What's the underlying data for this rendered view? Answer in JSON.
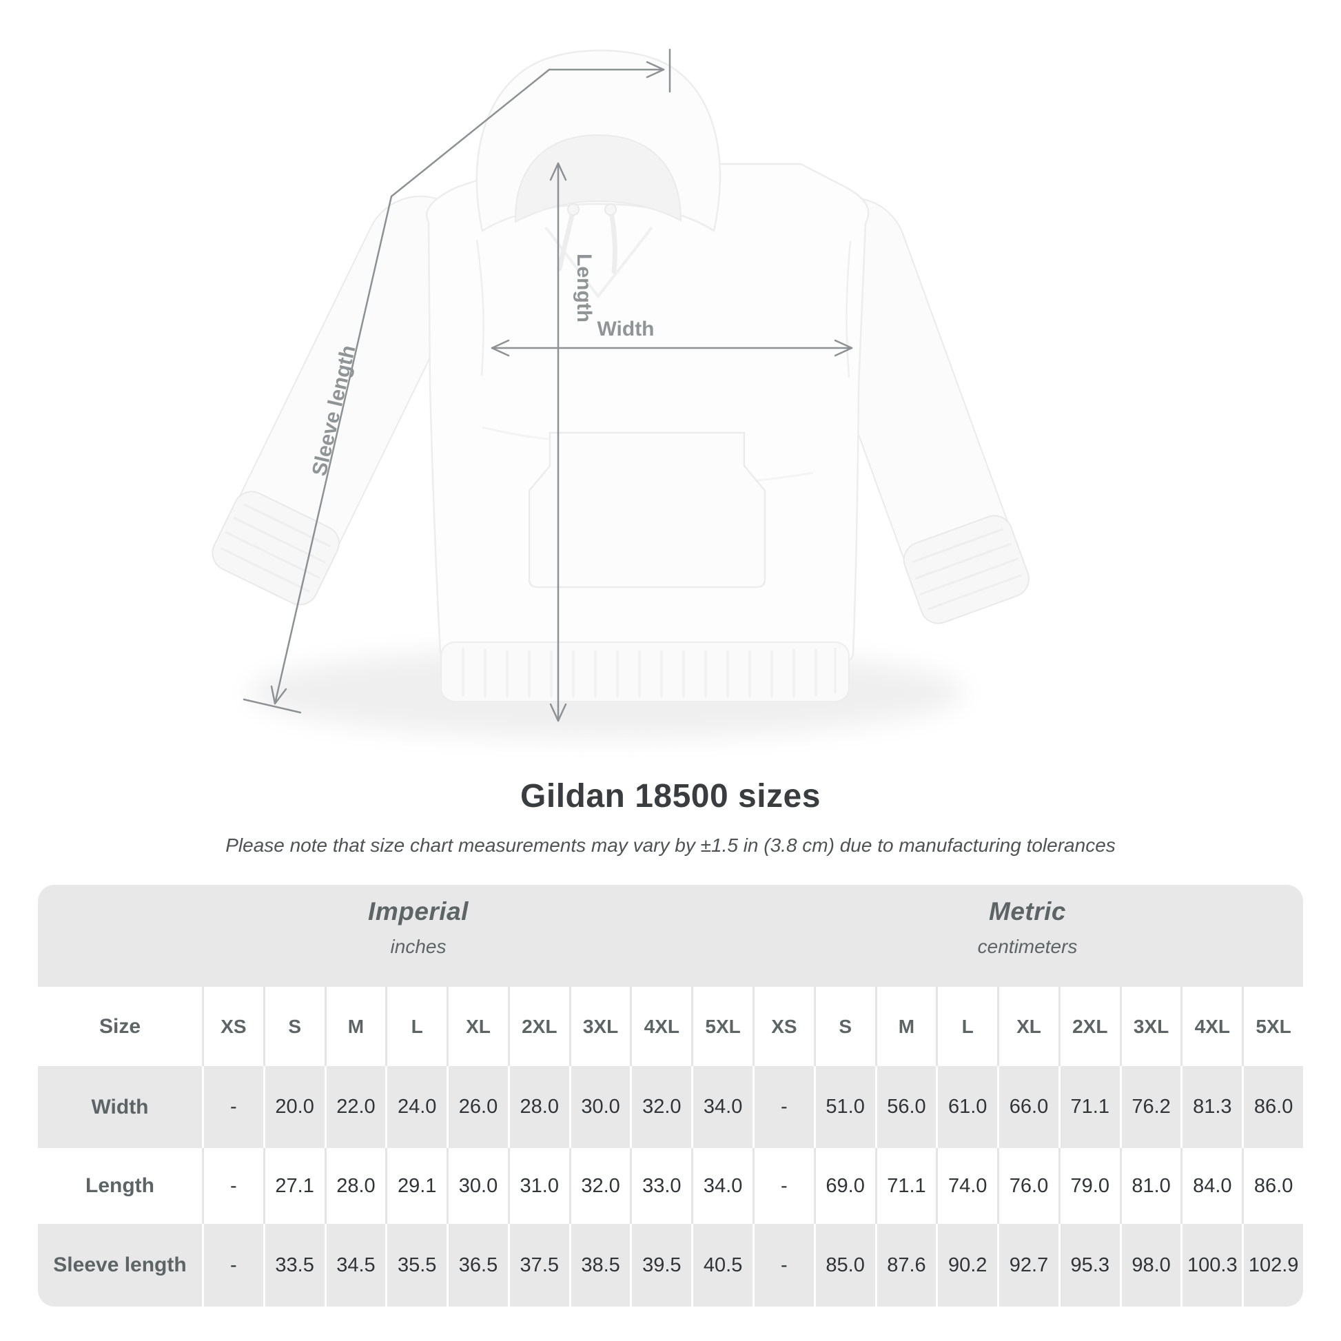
{
  "title": "Gildan 18500 sizes",
  "subtitle": "Please note that size chart measurements may vary by ±1.5 in (3.8 cm) due to manufacturing tolerances",
  "figure": {
    "length_label": "Length",
    "width_label": "Width",
    "sleeve_label": "Sleeve length"
  },
  "table": {
    "size_header": "Size",
    "groups": [
      {
        "name": "Imperial",
        "unit": "inches"
      },
      {
        "name": "Metric",
        "unit": "centimeters"
      }
    ],
    "columns": [
      "XS",
      "S",
      "M",
      "L",
      "XL",
      "2XL",
      "3XL",
      "4XL",
      "5XL",
      "XS",
      "S",
      "M",
      "L",
      "XL",
      "2XL",
      "3XL",
      "4XL",
      "5XL"
    ],
    "rows": [
      {
        "label": "Width",
        "values": [
          "-",
          "20.0",
          "22.0",
          "24.0",
          "26.0",
          "28.0",
          "30.0",
          "32.0",
          "34.0",
          "-",
          "51.0",
          "56.0",
          "61.0",
          "66.0",
          "71.1",
          "76.2",
          "81.3",
          "86.0"
        ]
      },
      {
        "label": "Length",
        "values": [
          "-",
          "27.1",
          "28.0",
          "29.1",
          "30.0",
          "31.0",
          "32.0",
          "33.0",
          "34.0",
          "-",
          "69.0",
          "71.1",
          "74.0",
          "76.0",
          "79.0",
          "81.0",
          "84.0",
          "86.0"
        ]
      },
      {
        "label": "Sleeve length",
        "values": [
          "-",
          "33.5",
          "34.5",
          "35.5",
          "36.5",
          "37.5",
          "38.5",
          "39.5",
          "40.5",
          "-",
          "85.0",
          "87.6",
          "90.2",
          "92.7",
          "95.3",
          "98.0",
          "100.3",
          "102.9"
        ]
      }
    ]
  },
  "colors": {
    "measure_line": "#8d9193",
    "measure_label": "#8f9496",
    "table_band": "#e8e8e8",
    "label_text": "#5d6466",
    "value_text": "#303436"
  }
}
